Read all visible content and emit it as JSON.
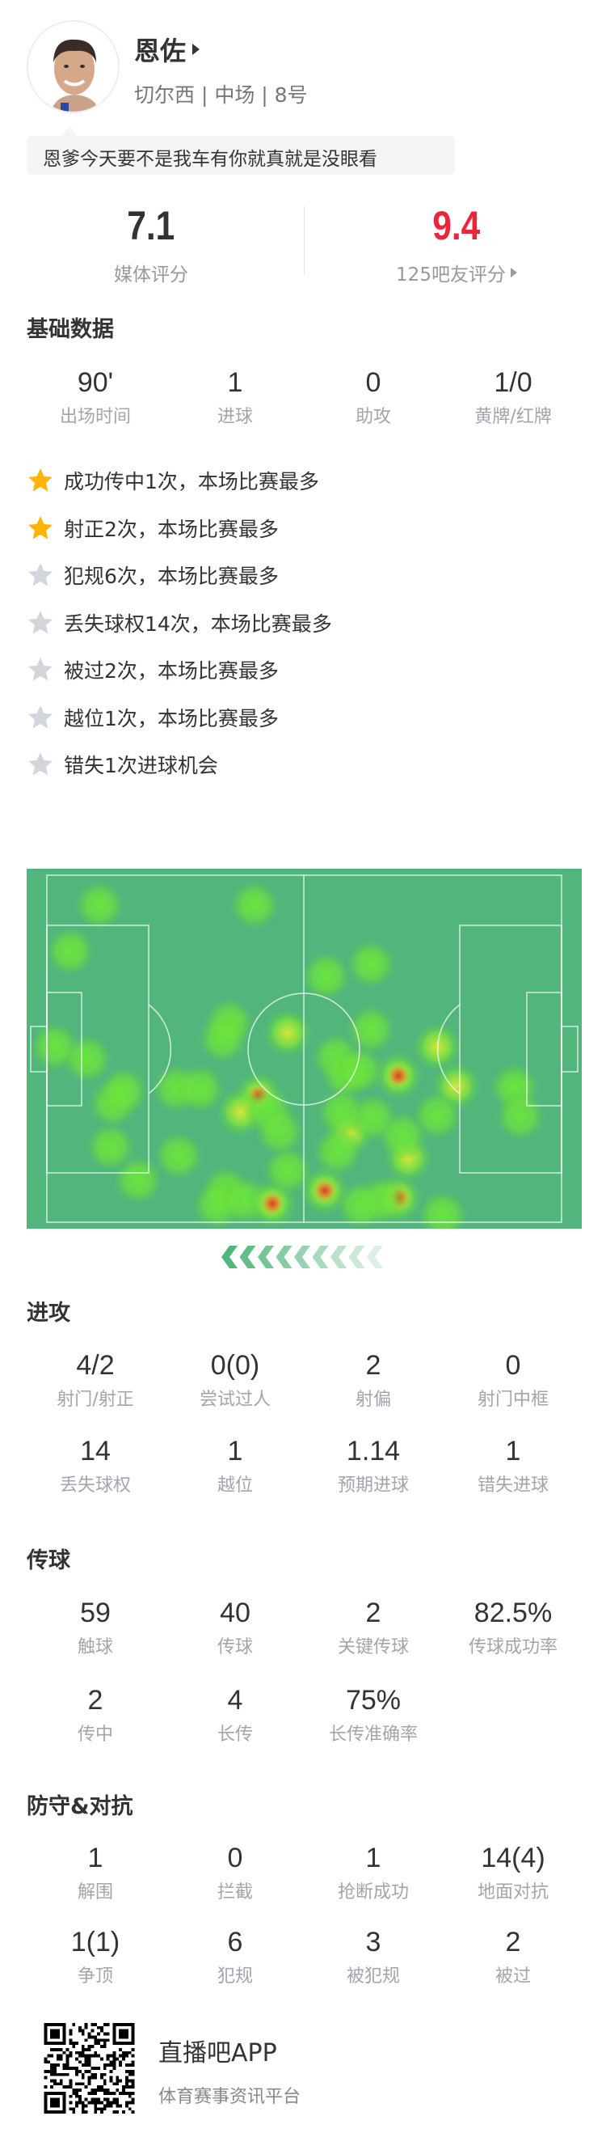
{
  "player": {
    "name": "恩佐",
    "info": "切尔西 | 中场 | 8号",
    "comment": "恩爹今天要不是我车有你就真就是没眼看"
  },
  "ratings": {
    "media": {
      "value": "7.1",
      "label": "媒体评分"
    },
    "fans": {
      "value": "9.4",
      "label": "125吧友评分",
      "color": "#f0233c"
    }
  },
  "basic": {
    "title": "基础数据",
    "stats": [
      {
        "value": "90'",
        "label": "出场时间"
      },
      {
        "value": "1",
        "label": "进球"
      },
      {
        "value": "0",
        "label": "助攻"
      },
      {
        "value": "1/0",
        "label": "黄牌/红牌"
      }
    ]
  },
  "highlights": [
    {
      "text": "成功传中1次，本场比赛最多",
      "star": "gold"
    },
    {
      "text": "射正2次，本场比赛最多",
      "star": "gold"
    },
    {
      "text": "犯规6次，本场比赛最多",
      "star": "gray"
    },
    {
      "text": "丢失球权14次，本场比赛最多",
      "star": "gray"
    },
    {
      "text": "被过2次，本场比赛最多",
      "star": "gray"
    },
    {
      "text": "越位1次，本场比赛最多",
      "star": "gray"
    },
    {
      "text": "错失1次进球机会",
      "star": "gray"
    }
  ],
  "heatmap": {
    "pitch_color": "#52b67c",
    "attack_direction": "left"
  },
  "attack": {
    "title": "进攻",
    "stats": [
      {
        "value": "4/2",
        "label": "射门/射正"
      },
      {
        "value": "0(0)",
        "label": "尝试过人"
      },
      {
        "value": "2",
        "label": "射偏"
      },
      {
        "value": "0",
        "label": "射门中框"
      },
      {
        "value": "14",
        "label": "丢失球权"
      },
      {
        "value": "1",
        "label": "越位"
      },
      {
        "value": "1.14",
        "label": "预期进球"
      },
      {
        "value": "1",
        "label": "错失进球"
      }
    ]
  },
  "passing": {
    "title": "传球",
    "stats": [
      {
        "value": "59",
        "label": "触球"
      },
      {
        "value": "40",
        "label": "传球"
      },
      {
        "value": "2",
        "label": "关键传球"
      },
      {
        "value": "82.5%",
        "label": "传球成功率"
      },
      {
        "value": "2",
        "label": "传中"
      },
      {
        "value": "4",
        "label": "长传"
      },
      {
        "value": "75%",
        "label": "长传准确率"
      }
    ]
  },
  "defense": {
    "title": "防守&对抗",
    "stats": [
      {
        "value": "1",
        "label": "解围"
      },
      {
        "value": "0",
        "label": "拦截"
      },
      {
        "value": "1",
        "label": "抢断成功"
      },
      {
        "value": "14(4)",
        "label": "地面对抗"
      },
      {
        "value": "1(1)",
        "label": "争顶"
      },
      {
        "value": "6",
        "label": "犯规"
      },
      {
        "value": "3",
        "label": "被犯规"
      },
      {
        "value": "2",
        "label": "被过"
      }
    ]
  },
  "footer": {
    "app_name": "直播吧APP",
    "slogan": "体育赛事资讯平台"
  }
}
